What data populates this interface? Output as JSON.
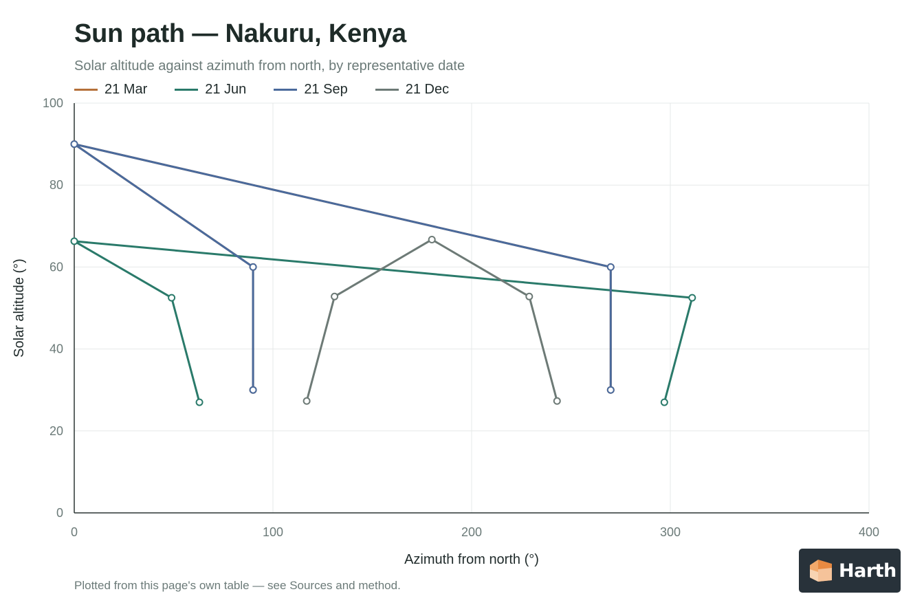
{
  "header": {
    "title": "Sun path — Nakuru, Kenya",
    "subtitle": "Solar altitude against azimuth from north, by representative date"
  },
  "footnote": "Plotted from this page's own table — see Sources and method.",
  "logo": {
    "text": "Harth",
    "icon": "box-icon"
  },
  "colors": {
    "mar": "#b5703a",
    "jun": "#2a7a6a",
    "sep": "#4a6a9c",
    "dec": "#6d7a76"
  },
  "chart_data": {
    "type": "line",
    "title": "Sun path — Nakuru, Kenya",
    "subtitle": "Solar altitude against azimuth from north, by representative date",
    "xlabel": "Azimuth from north (°)",
    "ylabel": "Solar altitude (°)",
    "xlim": [
      0,
      400
    ],
    "ylim": [
      0,
      100
    ],
    "xticks": [
      0,
      100,
      200,
      300,
      400
    ],
    "yticks": [
      0,
      20,
      40,
      60,
      80,
      100
    ],
    "grid": true,
    "legend": "top-left",
    "series": [
      {
        "name": "21 Mar",
        "color": "#b5703a",
        "points": [
          [
            90,
            30
          ],
          [
            90,
            60
          ],
          [
            0,
            90
          ],
          [
            270,
            60
          ],
          [
            270,
            30
          ]
        ]
      },
      {
        "name": "21 Jun",
        "color": "#2a7a6a",
        "points": [
          [
            63,
            27
          ],
          [
            49,
            52.5
          ],
          [
            0,
            66.3
          ],
          [
            311,
            52.5
          ],
          [
            297,
            27
          ]
        ]
      },
      {
        "name": "21 Sep",
        "color": "#4a6a9c",
        "points": [
          [
            90,
            30
          ],
          [
            90,
            60
          ],
          [
            0,
            90
          ],
          [
            270,
            60
          ],
          [
            270,
            30
          ]
        ]
      },
      {
        "name": "21 Dec",
        "color": "#6d7a76",
        "points": [
          [
            117,
            27.3
          ],
          [
            131,
            52.8
          ],
          [
            180,
            66.7
          ],
          [
            229,
            52.8
          ],
          [
            243,
            27.3
          ]
        ]
      }
    ]
  }
}
